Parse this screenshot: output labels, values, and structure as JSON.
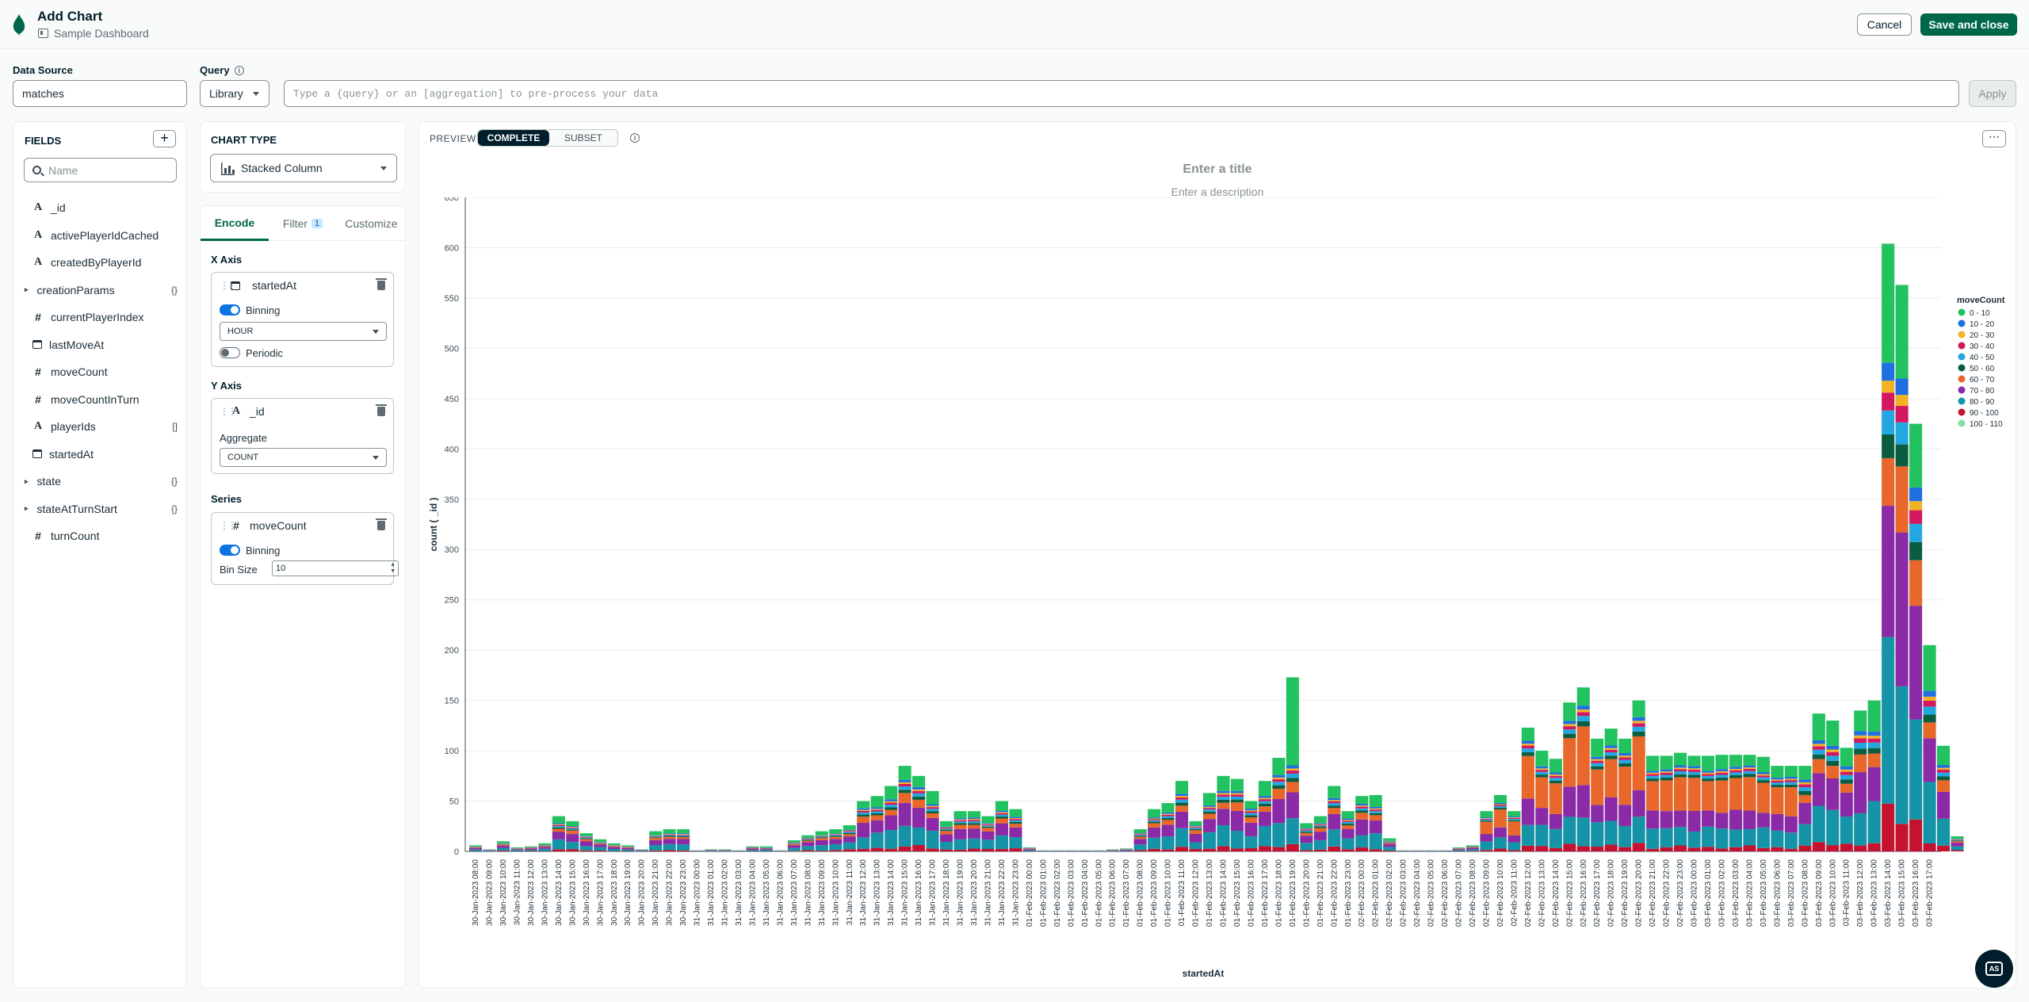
{
  "header": {
    "title": "Add Chart",
    "dashboard": "Sample Dashboard",
    "cancel_label": "Cancel",
    "save_label": "Save and close"
  },
  "data_source": {
    "label": "Data Source",
    "value": "matches"
  },
  "query": {
    "label": "Query",
    "mode": "Library",
    "placeholder": "Type a {query} or an [aggregation] to pre-process your data",
    "apply_label": "Apply"
  },
  "fields_panel": {
    "title": "FIELDS",
    "search_placeholder": "Name",
    "items": [
      {
        "name": "_id",
        "type": "string",
        "suffix": ""
      },
      {
        "name": "activePlayerIdCached",
        "type": "string",
        "suffix": ""
      },
      {
        "name": "createdByPlayerId",
        "type": "string",
        "suffix": ""
      },
      {
        "name": "creationParams",
        "type": "object",
        "suffix": "{}"
      },
      {
        "name": "currentPlayerIndex",
        "type": "number",
        "suffix": ""
      },
      {
        "name": "lastMoveAt",
        "type": "date",
        "suffix": ""
      },
      {
        "name": "moveCount",
        "type": "number",
        "suffix": ""
      },
      {
        "name": "moveCountInTurn",
        "type": "number",
        "suffix": ""
      },
      {
        "name": "playerIds",
        "type": "string",
        "suffix": "[]"
      },
      {
        "name": "startedAt",
        "type": "date",
        "suffix": ""
      },
      {
        "name": "state",
        "type": "object",
        "suffix": "{}"
      },
      {
        "name": "stateAtTurnStart",
        "type": "object",
        "suffix": "{}"
      },
      {
        "name": "turnCount",
        "type": "number",
        "suffix": ""
      }
    ]
  },
  "chart_type": {
    "label": "CHART TYPE",
    "value": "Stacked Column"
  },
  "encode": {
    "tabs": {
      "encode": "Encode",
      "filter": "Filter",
      "filter_count": "1",
      "customize": "Customize"
    },
    "x_axis": {
      "label": "X Axis",
      "field": "startedAt",
      "binning_label": "Binning",
      "binning_on": true,
      "bin_unit": "HOUR",
      "periodic_label": "Periodic",
      "periodic_on": false
    },
    "y_axis": {
      "label": "Y Axis",
      "field": "_id",
      "aggregate_label": "Aggregate",
      "aggregate": "COUNT"
    },
    "series": {
      "label": "Series",
      "field": "moveCount",
      "binning_label": "Binning",
      "binning_on": true,
      "bin_size_label": "Bin Size",
      "bin_size": "10"
    }
  },
  "preview": {
    "label": "PREVIEW",
    "complete_label": "COMPLETE",
    "subset_label": "SUBSET",
    "more_label": "⋯",
    "title_placeholder": "Enter a title",
    "description_placeholder": "Enter a description"
  },
  "help": {
    "label": "AS"
  },
  "colors": {
    "brand": "#00684a",
    "accent": "#0b74e1",
    "dark": "#001e2b"
  },
  "chart_data": {
    "type": "bar",
    "stacked": true,
    "xlabel": "startedAt",
    "ylabel": "count ( _id )",
    "ylim": [
      0,
      650
    ],
    "yticks": [
      0,
      50,
      100,
      150,
      200,
      250,
      300,
      350,
      400,
      450,
      500,
      550,
      600,
      650
    ],
    "grid": true,
    "legend_title": "moveCount",
    "legend_position": "right",
    "legend": [
      {
        "name": "0 - 10",
        "color": "#21c25f"
      },
      {
        "name": "10 - 20",
        "color": "#1f6fe0"
      },
      {
        "name": "20 - 30",
        "color": "#f2b226"
      },
      {
        "name": "30 - 40",
        "color": "#d3185f"
      },
      {
        "name": "40 - 50",
        "color": "#22a7e0"
      },
      {
        "name": "50 - 60",
        "color": "#0b5d3f"
      },
      {
        "name": "60 - 70",
        "color": "#e8672a"
      },
      {
        "name": "70 - 80",
        "color": "#8a2aa6"
      },
      {
        "name": "80 - 90",
        "color": "#1593a7"
      },
      {
        "name": "90 - 100",
        "color": "#c4122f"
      },
      {
        "name": "100 - 110",
        "color": "#7de3a1"
      }
    ],
    "categories": [
      "30-Jan-2023 08:00",
      "30-Jan-2023 09:00",
      "30-Jan-2023 10:00",
      "30-Jan-2023 11:00",
      "30-Jan-2023 12:00",
      "30-Jan-2023 13:00",
      "30-Jan-2023 14:00",
      "30-Jan-2023 15:00",
      "30-Jan-2023 16:00",
      "30-Jan-2023 17:00",
      "30-Jan-2023 18:00",
      "30-Jan-2023 19:00",
      "30-Jan-2023 20:00",
      "30-Jan-2023 21:00",
      "30-Jan-2023 22:00",
      "30-Jan-2023 23:00",
      "31-Jan-2023 00:00",
      "31-Jan-2023 01:00",
      "31-Jan-2023 02:00",
      "31-Jan-2023 03:00",
      "31-Jan-2023 04:00",
      "31-Jan-2023 05:00",
      "31-Jan-2023 06:00",
      "31-Jan-2023 07:00",
      "31-Jan-2023 08:00",
      "31-Jan-2023 09:00",
      "31-Jan-2023 10:00",
      "31-Jan-2023 11:00",
      "31-Jan-2023 12:00",
      "31-Jan-2023 13:00",
      "31-Jan-2023 14:00",
      "31-Jan-2023 15:00",
      "31-Jan-2023 16:00",
      "31-Jan-2023 17:00",
      "31-Jan-2023 18:00",
      "31-Jan-2023 19:00",
      "31-Jan-2023 20:00",
      "31-Jan-2023 21:00",
      "31-Jan-2023 22:00",
      "31-Jan-2023 23:00",
      "01-Feb-2023 00:00",
      "01-Feb-2023 01:00",
      "01-Feb-2023 02:00",
      "01-Feb-2023 03:00",
      "01-Feb-2023 04:00",
      "01-Feb-2023 05:00",
      "01-Feb-2023 06:00",
      "01-Feb-2023 07:00",
      "01-Feb-2023 08:00",
      "01-Feb-2023 09:00",
      "01-Feb-2023 10:00",
      "01-Feb-2023 11:00",
      "01-Feb-2023 12:00",
      "01-Feb-2023 13:00",
      "01-Feb-2023 14:00",
      "01-Feb-2023 15:00",
      "01-Feb-2023 16:00",
      "01-Feb-2023 17:00",
      "01-Feb-2023 18:00",
      "01-Feb-2023 19:00",
      "01-Feb-2023 20:00",
      "01-Feb-2023 21:00",
      "01-Feb-2023 22:00",
      "01-Feb-2023 23:00",
      "02-Feb-2023 00:00",
      "02-Feb-2023 01:00",
      "02-Feb-2023 02:00",
      "02-Feb-2023 03:00",
      "02-Feb-2023 04:00",
      "02-Feb-2023 05:00",
      "02-Feb-2023 06:00",
      "02-Feb-2023 07:00",
      "02-Feb-2023 08:00",
      "02-Feb-2023 09:00",
      "02-Feb-2023 10:00",
      "02-Feb-2023 11:00",
      "02-Feb-2023 12:00",
      "02-Feb-2023 13:00",
      "02-Feb-2023 14:00",
      "02-Feb-2023 15:00",
      "02-Feb-2023 16:00",
      "02-Feb-2023 17:00",
      "02-Feb-2023 18:00",
      "02-Feb-2023 19:00",
      "02-Feb-2023 20:00",
      "02-Feb-2023 21:00",
      "02-Feb-2023 22:00",
      "02-Feb-2023 23:00",
      "03-Feb-2023 00:00",
      "03-Feb-2023 01:00",
      "03-Feb-2023 02:00",
      "03-Feb-2023 03:00",
      "03-Feb-2023 04:00",
      "03-Feb-2023 05:00",
      "03-Feb-2023 06:00",
      "03-Feb-2023 07:00",
      "03-Feb-2023 08:00",
      "03-Feb-2023 09:00",
      "03-Feb-2023 10:00",
      "03-Feb-2023 11:00",
      "03-Feb-2023 12:00",
      "03-Feb-2023 13:00",
      "03-Feb-2023 14:00",
      "03-Feb-2023 15:00",
      "03-Feb-2023 16:00",
      "03-Feb-2023 17:00"
    ],
    "totals": [
      6,
      2,
      10,
      4,
      5,
      8,
      35,
      30,
      18,
      12,
      8,
      6,
      2,
      20,
      22,
      22,
      1,
      2,
      2,
      1,
      5,
      5,
      1,
      11,
      16,
      20,
      22,
      26,
      50,
      55,
      65,
      85,
      75,
      60,
      30,
      40,
      40,
      35,
      50,
      42,
      4,
      1,
      1,
      1,
      1,
      1,
      2,
      3,
      22,
      42,
      48,
      70,
      30,
      58,
      75,
      72,
      50,
      70,
      93,
      173,
      28,
      35,
      65,
      40,
      55,
      56,
      13,
      1,
      1,
      1,
      1,
      4,
      6,
      40,
      56,
      40,
      123,
      100,
      92,
      148,
      163,
      112,
      122,
      112,
      150,
      95,
      95,
      98,
      95,
      95,
      96,
      96,
      96,
      94,
      85,
      85,
      85,
      137,
      130,
      103,
      140,
      150,
      604,
      563,
      425,
      205,
      105,
      15
    ],
    "top_series_share": {
      "0 - 10": 0.14,
      "60 - 70": 0.3,
      "70 - 80": 0.22,
      "80 - 90": 0.22
    }
  }
}
